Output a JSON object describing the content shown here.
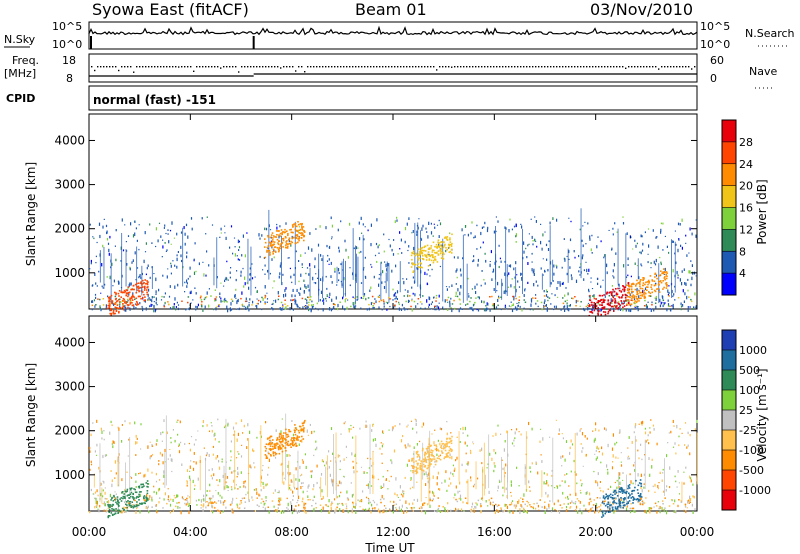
{
  "header": {
    "station": "Syowa East (fitACF)",
    "beam": "Beam 01",
    "date": "03/Nov/2010"
  },
  "strip": {
    "nsky_label": "N.Sky",
    "nsearch_label": "N.Search",
    "freq_label": "Freq.",
    "freq_unit": "[MHz]",
    "nave_label": "Nave",
    "cpid_label": "CPID",
    "cpid_value": "normal (fast) -151",
    "noise_ticks_left": [
      "10^5",
      "10^0"
    ],
    "noise_ticks_right": [
      "10^5",
      "10^0"
    ],
    "freq_ticks": [
      "18",
      "8"
    ],
    "nave_ticks": [
      "60",
      "0"
    ]
  },
  "chart_data": [
    {
      "type": "heatmap",
      "name": "power",
      "ylabel": "Slant Range [km]",
      "ylim": [
        180,
        4600
      ],
      "yticks": [
        1000,
        2000,
        3000,
        4000
      ],
      "xlim": [
        0,
        24
      ],
      "colorbar": {
        "label": "Power [dB]",
        "ticks": [
          4,
          8,
          12,
          16,
          20,
          24,
          28
        ],
        "colors": [
          "#0000ff",
          "#1e5ab4",
          "#2e8b57",
          "#7fd13b",
          "#f0c419",
          "#ff8c00",
          "#ff4500",
          "#e8000b"
        ]
      },
      "features": [
        {
          "time": 7.7,
          "range": 1800,
          "dB": 20
        },
        {
          "time": 13.5,
          "range": 1450,
          "dB": 16
        },
        {
          "time": 1.5,
          "range": 450,
          "dB": 24
        },
        {
          "time": 20.5,
          "range": 350,
          "dB": 28
        },
        {
          "time": 22.0,
          "range": 700,
          "dB": 20
        }
      ]
    },
    {
      "type": "heatmap",
      "name": "velocity",
      "ylabel": "Slant Range [km]",
      "ylim": [
        180,
        4600
      ],
      "yticks": [
        1000,
        2000,
        3000,
        4000
      ],
      "xlim": [
        0,
        24
      ],
      "xlabel": "Time UT",
      "xticks": [
        "00:00",
        "04:00",
        "08:00",
        "12:00",
        "16:00",
        "20:00",
        "00:00"
      ],
      "colorbar": {
        "label": "Velocity [m s⁻¹]",
        "ticks": [
          "1000",
          "500",
          "100",
          "25",
          "-25",
          "-100",
          "-500",
          "-1000"
        ],
        "colors": [
          "#1e3fb4",
          "#1e6fa0",
          "#2e8b57",
          "#7fd13b",
          "#c0c0c0",
          "#ffc04d",
          "#ff8c00",
          "#ff4500",
          "#e8000b"
        ]
      },
      "features": [
        {
          "time": 7.7,
          "range": 1800,
          "velocity": -500
        },
        {
          "time": 13.5,
          "range": 1450,
          "velocity": -100
        },
        {
          "time": 1.5,
          "range": 450,
          "velocity": 100
        },
        {
          "time": 21.0,
          "range": 500,
          "velocity": 500
        }
      ]
    }
  ]
}
